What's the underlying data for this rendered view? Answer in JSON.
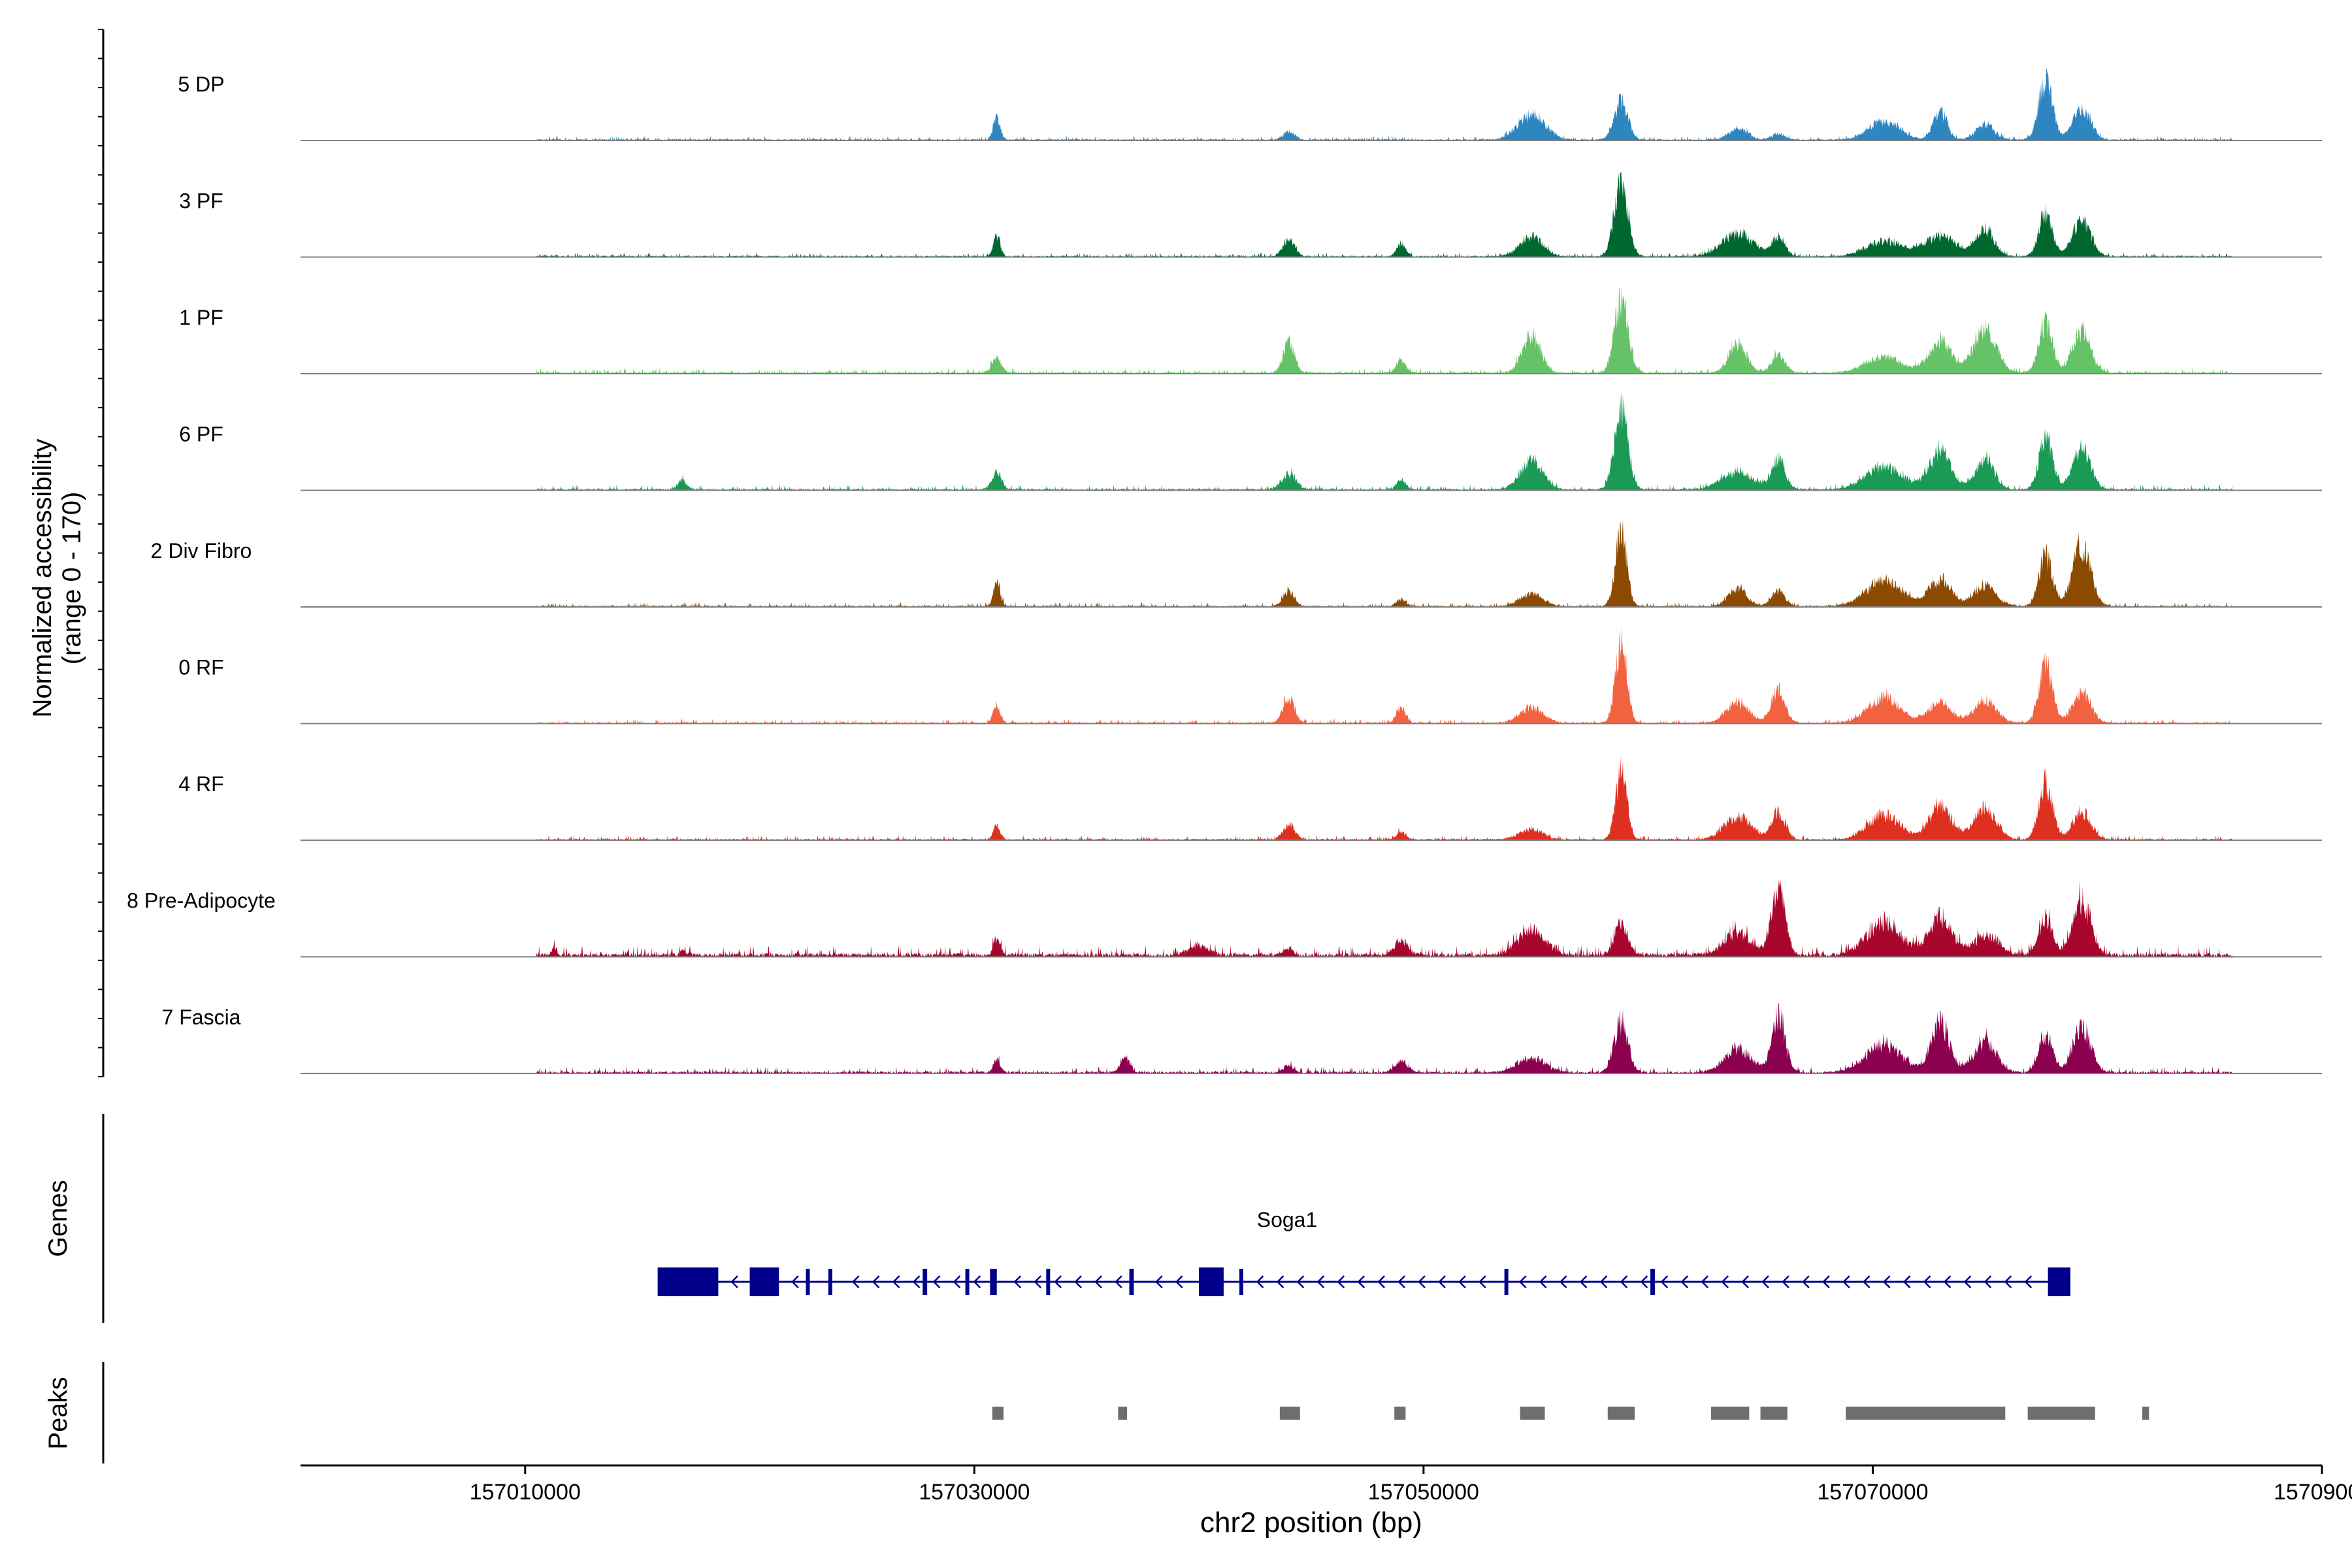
{
  "chart_data": {
    "type": "area",
    "title": "",
    "ylabel_line1": "Normalized accessibility",
    "ylabel_line2": "(range 0 - 170)",
    "ylim": [
      0,
      170
    ],
    "xlabel": "chr2 position (bp)",
    "xlim": [
      157000000,
      157090000
    ],
    "xticks": [
      157010000,
      157030000,
      157050000,
      157070000,
      157090000
    ],
    "xtick_labels": [
      "157010000",
      "157030000",
      "157050000",
      "157070000",
      "157090000"
    ],
    "track_range": [
      157010500,
      157086000
    ],
    "peak_positions": [
      157031000,
      157036700,
      157044000,
      157049000,
      157054800,
      157058800,
      157064000,
      157065800,
      157070500,
      157073000,
      157075000,
      157077700,
      157079300
    ],
    "series": [
      {
        "name": "5 DP",
        "color": "#2e86c1",
        "noise": 2.5,
        "peaks": [
          [
            157031000,
            45,
            150
          ],
          [
            157044000,
            16,
            250
          ],
          [
            157054800,
            50,
            600
          ],
          [
            157058800,
            75,
            300
          ],
          [
            157064000,
            22,
            400
          ],
          [
            157065800,
            12,
            300
          ],
          [
            157070500,
            35,
            700
          ],
          [
            157073000,
            55,
            300
          ],
          [
            157075000,
            30,
            400
          ],
          [
            157077700,
            120,
            300
          ],
          [
            157079300,
            60,
            400
          ]
        ]
      },
      {
        "name": "3 PF",
        "color": "#00682f",
        "noise": 2.5,
        "peaks": [
          [
            157031000,
            42,
            150
          ],
          [
            157044000,
            35,
            250
          ],
          [
            157049000,
            25,
            200
          ],
          [
            157054800,
            40,
            500
          ],
          [
            157058800,
            145,
            300
          ],
          [
            157064000,
            45,
            700
          ],
          [
            157065800,
            35,
            300
          ],
          [
            157070500,
            30,
            800
          ],
          [
            157073000,
            40,
            700
          ],
          [
            157075000,
            55,
            400
          ],
          [
            157077700,
            85,
            300
          ],
          [
            157079300,
            70,
            400
          ]
        ]
      },
      {
        "name": "1 PF",
        "color": "#66c266",
        "noise": 3,
        "peaks": [
          [
            157031000,
            30,
            200
          ],
          [
            157044000,
            60,
            250
          ],
          [
            157049000,
            25,
            200
          ],
          [
            157054800,
            75,
            400
          ],
          [
            157058800,
            140,
            300
          ],
          [
            157064000,
            55,
            400
          ],
          [
            157065800,
            35,
            300
          ],
          [
            157070500,
            30,
            800
          ],
          [
            157073000,
            60,
            500
          ],
          [
            157075000,
            85,
            500
          ],
          [
            157077700,
            100,
            300
          ],
          [
            157079300,
            80,
            400
          ]
        ]
      },
      {
        "name": "6 PF",
        "color": "#1b9a55",
        "noise": 3,
        "peaks": [
          [
            157017000,
            18,
            200
          ],
          [
            157031000,
            35,
            200
          ],
          [
            157044000,
            30,
            300
          ],
          [
            157049000,
            20,
            200
          ],
          [
            157054800,
            55,
            500
          ],
          [
            157058800,
            155,
            300
          ],
          [
            157064000,
            35,
            700
          ],
          [
            157065800,
            60,
            300
          ],
          [
            157070500,
            45,
            800
          ],
          [
            157073000,
            75,
            500
          ],
          [
            157075000,
            60,
            400
          ],
          [
            157077700,
            100,
            300
          ],
          [
            157079300,
            80,
            400
          ]
        ]
      },
      {
        "name": "2 Div Fibro",
        "color": "#8b4a00",
        "noise": 2.5,
        "peaks": [
          [
            157031000,
            45,
            150
          ],
          [
            157044000,
            30,
            250
          ],
          [
            157049000,
            15,
            200
          ],
          [
            157054800,
            25,
            500
          ],
          [
            157058800,
            150,
            250
          ],
          [
            157064000,
            35,
            400
          ],
          [
            157065800,
            30,
            300
          ],
          [
            157070500,
            50,
            800
          ],
          [
            157073000,
            50,
            500
          ],
          [
            157075000,
            40,
            500
          ],
          [
            157077700,
            100,
            300
          ],
          [
            157079300,
            120,
            400
          ]
        ]
      },
      {
        "name": "0 RF",
        "color": "#f26240",
        "noise": 2.5,
        "peaks": [
          [
            157031000,
            35,
            150
          ],
          [
            157044000,
            50,
            250
          ],
          [
            157049000,
            30,
            200
          ],
          [
            157054800,
            30,
            500
          ],
          [
            157058800,
            160,
            250
          ],
          [
            157064000,
            40,
            500
          ],
          [
            157065800,
            65,
            300
          ],
          [
            157070500,
            50,
            700
          ],
          [
            157073000,
            40,
            500
          ],
          [
            157075000,
            45,
            500
          ],
          [
            157077700,
            115,
            300
          ],
          [
            157079300,
            60,
            400
          ]
        ]
      },
      {
        "name": "4 RF",
        "color": "#de3020",
        "noise": 2.5,
        "peaks": [
          [
            157031000,
            28,
            150
          ],
          [
            157044000,
            30,
            250
          ],
          [
            157049000,
            15,
            200
          ],
          [
            157054800,
            20,
            500
          ],
          [
            157058800,
            130,
            250
          ],
          [
            157064000,
            45,
            600
          ],
          [
            157065800,
            55,
            300
          ],
          [
            157070500,
            50,
            700
          ],
          [
            157073000,
            65,
            500
          ],
          [
            157075000,
            60,
            500
          ],
          [
            157077700,
            110,
            300
          ],
          [
            157079300,
            55,
            400
          ]
        ]
      },
      {
        "name": "8 Pre-Adipocyte",
        "color": "#a8062c",
        "noise": 6,
        "peaks": [
          [
            157011300,
            18,
            100
          ],
          [
            157017000,
            12,
            100
          ],
          [
            157031000,
            35,
            150
          ],
          [
            157040000,
            20,
            400
          ],
          [
            157044000,
            15,
            200
          ],
          [
            157049000,
            30,
            300
          ],
          [
            157054800,
            50,
            600
          ],
          [
            157058800,
            60,
            300
          ],
          [
            157064000,
            45,
            600
          ],
          [
            157065800,
            130,
            300
          ],
          [
            157070500,
            60,
            800
          ],
          [
            157073000,
            75,
            500
          ],
          [
            157075000,
            35,
            600
          ],
          [
            157077700,
            70,
            300
          ],
          [
            157079300,
            110,
            400
          ]
        ]
      },
      {
        "name": "7 Fascia",
        "color": "#8c0050",
        "noise": 3.5,
        "peaks": [
          [
            157031000,
            25,
            150
          ],
          [
            157036700,
            30,
            200
          ],
          [
            157044000,
            15,
            200
          ],
          [
            157049000,
            20,
            300
          ],
          [
            157054800,
            30,
            600
          ],
          [
            157058800,
            100,
            300
          ],
          [
            157064000,
            45,
            600
          ],
          [
            157065800,
            110,
            300
          ],
          [
            157070500,
            55,
            800
          ],
          [
            157073000,
            100,
            400
          ],
          [
            157075000,
            60,
            500
          ],
          [
            157077700,
            75,
            300
          ],
          [
            157079300,
            90,
            400
          ]
        ]
      }
    ],
    "gene": {
      "name": "Soga1",
      "strand": "-",
      "start": 157015900,
      "end": 157078800,
      "color": "#00008b",
      "exons": [
        [
          157015900,
          157018600
        ],
        [
          157020000,
          157021300
        ],
        [
          157022500,
          157022600
        ],
        [
          157023500,
          157023600
        ],
        [
          157027700,
          157027900
        ],
        [
          157029600,
          157029700
        ],
        [
          157030700,
          157031000
        ],
        [
          157033200,
          157033300
        ],
        [
          157036900,
          157037100
        ],
        [
          157040000,
          157041100
        ],
        [
          157041800,
          157041900
        ],
        [
          157053600,
          157053700
        ],
        [
          157060100,
          157060300
        ],
        [
          157077800,
          157078800
        ]
      ]
    },
    "genes_label": "Genes",
    "peaks_label": "Peaks",
    "peak_regions": [
      [
        157030800,
        157031300
      ],
      [
        157036400,
        157036800
      ],
      [
        157043600,
        157044500
      ],
      [
        157048700,
        157049200
      ],
      [
        157054300,
        157055400
      ],
      [
        157058200,
        157059400
      ],
      [
        157062800,
        157064500
      ],
      [
        157065000,
        157066200
      ],
      [
        157068800,
        157075900
      ],
      [
        157076900,
        157079900
      ],
      [
        157082000,
        157082300
      ]
    ],
    "peak_color": "#6e6e6e",
    "axis_color": "#808080"
  }
}
